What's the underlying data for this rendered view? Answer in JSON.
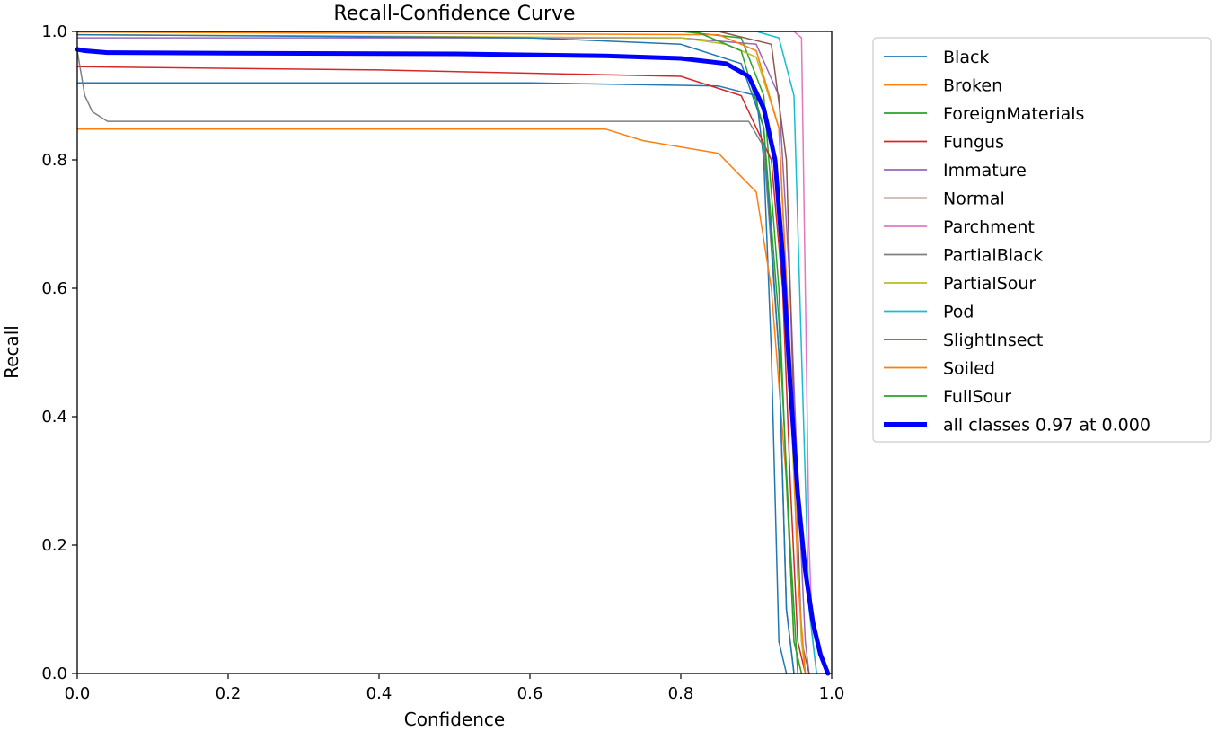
{
  "chart_data": {
    "type": "line",
    "title": "Recall-Confidence Curve",
    "xlabel": "Confidence",
    "ylabel": "Recall",
    "xlim": [
      0,
      1
    ],
    "ylim": [
      0,
      1
    ],
    "xticks": [
      "0.0",
      "0.2",
      "0.4",
      "0.6",
      "0.8",
      "1.0"
    ],
    "yticks": [
      "0.0",
      "0.2",
      "0.4",
      "0.6",
      "0.8",
      "1.0"
    ],
    "grid": false,
    "legend_position": "outside-right",
    "series": [
      {
        "name": "Black",
        "color": "#1f77b4",
        "width": 1.5,
        "points": [
          [
            0,
            0.92
          ],
          [
            0.01,
            0.92
          ],
          [
            0.6,
            0.92
          ],
          [
            0.85,
            0.915
          ],
          [
            0.9,
            0.9
          ],
          [
            0.91,
            0.8
          ],
          [
            0.92,
            0.5
          ],
          [
            0.93,
            0.05
          ],
          [
            0.94,
            0
          ]
        ]
      },
      {
        "name": "Broken",
        "color": "#ff7f0e",
        "width": 1.5,
        "points": [
          [
            0,
            0.848
          ],
          [
            0.7,
            0.848
          ],
          [
            0.75,
            0.83
          ],
          [
            0.85,
            0.81
          ],
          [
            0.9,
            0.75
          ],
          [
            0.92,
            0.6
          ],
          [
            0.94,
            0.3
          ],
          [
            0.95,
            0.05
          ],
          [
            0.96,
            0
          ]
        ]
      },
      {
        "name": "ForeignMaterials",
        "color": "#2ca02c",
        "width": 1.5,
        "points": [
          [
            0,
            1
          ],
          [
            0.8,
            1
          ],
          [
            0.88,
            0.99
          ],
          [
            0.91,
            0.9
          ],
          [
            0.93,
            0.6
          ],
          [
            0.94,
            0.3
          ],
          [
            0.95,
            0.05
          ],
          [
            0.96,
            0
          ]
        ]
      },
      {
        "name": "Fungus",
        "color": "#d62728",
        "width": 1.5,
        "points": [
          [
            0,
            0.945
          ],
          [
            0.4,
            0.94
          ],
          [
            0.6,
            0.935
          ],
          [
            0.8,
            0.93
          ],
          [
            0.88,
            0.9
          ],
          [
            0.92,
            0.8
          ],
          [
            0.935,
            0.6
          ],
          [
            0.945,
            0.3
          ],
          [
            0.955,
            0.05
          ],
          [
            0.965,
            0
          ]
        ]
      },
      {
        "name": "Immature",
        "color": "#9467bd",
        "width": 1.5,
        "points": [
          [
            0,
            0.99
          ],
          [
            0.8,
            0.99
          ],
          [
            0.9,
            0.98
          ],
          [
            0.93,
            0.9
          ],
          [
            0.945,
            0.6
          ],
          [
            0.955,
            0.3
          ],
          [
            0.965,
            0.05
          ],
          [
            0.97,
            0
          ]
        ]
      },
      {
        "name": "Normal",
        "color": "#8c564b",
        "width": 1.5,
        "points": [
          [
            0,
            1
          ],
          [
            0.85,
            1
          ],
          [
            0.92,
            0.98
          ],
          [
            0.94,
            0.8
          ],
          [
            0.95,
            0.4
          ],
          [
            0.96,
            0.05
          ],
          [
            0.97,
            0
          ]
        ]
      },
      {
        "name": "Parchment",
        "color": "#e377c2",
        "width": 1.5,
        "points": [
          [
            0,
            1
          ],
          [
            0.95,
            1
          ],
          [
            0.96,
            0.99
          ],
          [
            0.965,
            0.6
          ],
          [
            0.97,
            0.2
          ],
          [
            0.975,
            0.05
          ],
          [
            0.98,
            0
          ]
        ]
      },
      {
        "name": "PartialBlack",
        "color": "#7f7f7f",
        "width": 1.5,
        "points": [
          [
            0,
            0.97
          ],
          [
            0.01,
            0.9
          ],
          [
            0.02,
            0.875
          ],
          [
            0.04,
            0.86
          ],
          [
            0.6,
            0.86
          ],
          [
            0.89,
            0.86
          ],
          [
            0.91,
            0.82
          ],
          [
            0.93,
            0.5
          ],
          [
            0.94,
            0.1
          ],
          [
            0.95,
            0
          ]
        ]
      },
      {
        "name": "PartialSour",
        "color": "#bcbd22",
        "width": 1.5,
        "points": [
          [
            0,
            0.995
          ],
          [
            0.8,
            0.99
          ],
          [
            0.86,
            0.98
          ],
          [
            0.9,
            0.96
          ],
          [
            0.93,
            0.85
          ],
          [
            0.94,
            0.6
          ],
          [
            0.95,
            0.3
          ],
          [
            0.96,
            0.05
          ],
          [
            0.965,
            0
          ]
        ]
      },
      {
        "name": "Pod",
        "color": "#17becf",
        "width": 1.5,
        "points": [
          [
            0,
            1
          ],
          [
            0.9,
            1
          ],
          [
            0.93,
            0.99
          ],
          [
            0.95,
            0.9
          ],
          [
            0.96,
            0.5
          ],
          [
            0.97,
            0.1
          ],
          [
            0.98,
            0
          ]
        ]
      },
      {
        "name": "SlightInsect",
        "color": "#1f77b4",
        "width": 1.5,
        "points": [
          [
            0,
            0.995
          ],
          [
            0.6,
            0.99
          ],
          [
            0.8,
            0.98
          ],
          [
            0.88,
            0.95
          ],
          [
            0.91,
            0.85
          ],
          [
            0.93,
            0.5
          ],
          [
            0.94,
            0.1
          ],
          [
            0.95,
            0
          ]
        ]
      },
      {
        "name": "Soiled",
        "color": "#ff7f0e",
        "width": 1.5,
        "points": [
          [
            0,
            0.999
          ],
          [
            0.85,
            0.995
          ],
          [
            0.9,
            0.97
          ],
          [
            0.93,
            0.85
          ],
          [
            0.945,
            0.5
          ],
          [
            0.955,
            0.15
          ],
          [
            0.965,
            0
          ]
        ]
      },
      {
        "name": "FullSour",
        "color": "#2ca02c",
        "width": 1.5,
        "points": [
          [
            0,
            1
          ],
          [
            0.82,
            1
          ],
          [
            0.88,
            0.97
          ],
          [
            0.91,
            0.85
          ],
          [
            0.93,
            0.55
          ],
          [
            0.945,
            0.2
          ],
          [
            0.955,
            0
          ]
        ]
      },
      {
        "name": "all classes 0.97 at 0.000",
        "color": "#0000ff",
        "width": 5,
        "points": [
          [
            0,
            0.972
          ],
          [
            0.01,
            0.97
          ],
          [
            0.04,
            0.967
          ],
          [
            0.2,
            0.966
          ],
          [
            0.5,
            0.965
          ],
          [
            0.7,
            0.962
          ],
          [
            0.8,
            0.958
          ],
          [
            0.86,
            0.95
          ],
          [
            0.89,
            0.93
          ],
          [
            0.91,
            0.88
          ],
          [
            0.925,
            0.8
          ],
          [
            0.935,
            0.65
          ],
          [
            0.945,
            0.45
          ],
          [
            0.955,
            0.28
          ],
          [
            0.965,
            0.16
          ],
          [
            0.975,
            0.08
          ],
          [
            0.985,
            0.03
          ],
          [
            0.995,
            0
          ]
        ]
      }
    ]
  }
}
